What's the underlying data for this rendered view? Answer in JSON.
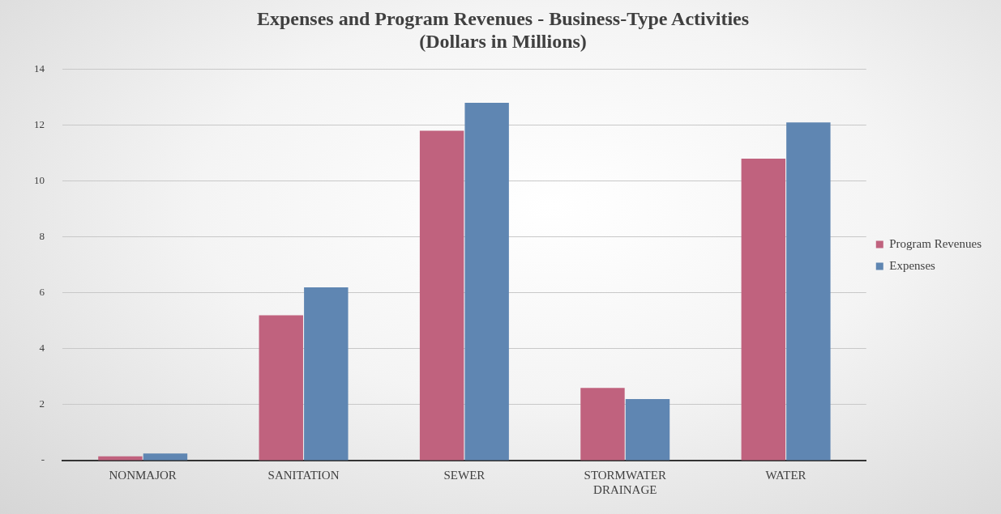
{
  "chart_data": {
    "type": "bar",
    "title": "Expenses and Program Revenues - Business-Type Activities",
    "subtitle": "(Dollars in Millions)",
    "categories": [
      "NONMAJOR",
      "SANITATION",
      "SEWER",
      "STORMWATER DRAINAGE",
      "WATER"
    ],
    "series": [
      {
        "name": "Program Revenues",
        "color": "#c0627e",
        "values": [
          0.15,
          5.2,
          11.8,
          2.6,
          10.8
        ]
      },
      {
        "name": "Expenses",
        "color": "#5f86b2",
        "values": [
          0.25,
          6.2,
          12.8,
          2.2,
          12.1
        ]
      }
    ],
    "ylim": [
      0,
      14
    ],
    "yticks": [
      {
        "value": 0,
        "label": "-"
      },
      2,
      4,
      6,
      8,
      10,
      12,
      14
    ],
    "grid": "y",
    "legend": "right"
  }
}
